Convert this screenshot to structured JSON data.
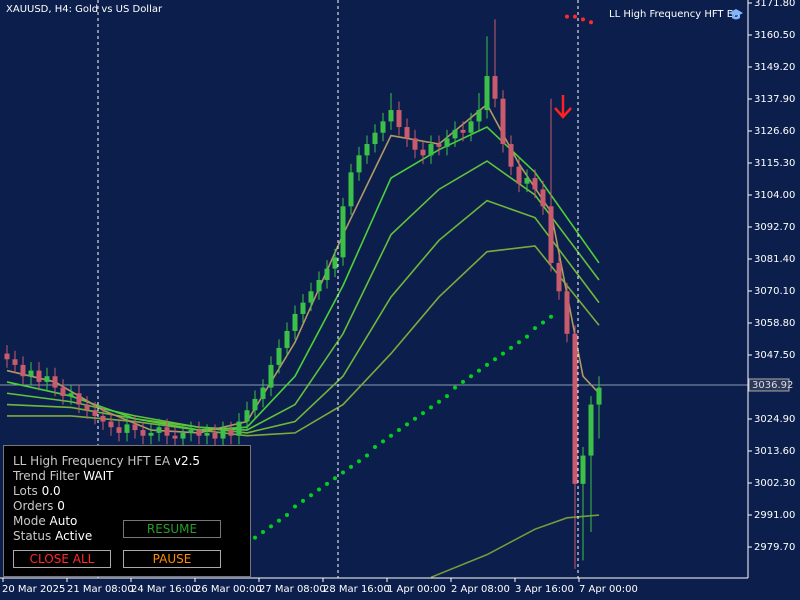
{
  "chart_data": {
    "type": "candlestick",
    "title": "XAUUSD, H4:  Gold vs US Dollar",
    "up_color": "#3cc04a",
    "down_color": "#c95b6e",
    "categories": [
      "20 Mar 2025",
      null,
      null,
      null,
      null,
      null,
      null,
      null,
      "21 Mar 08:00",
      null,
      null,
      null,
      null,
      null,
      null,
      null,
      "24 Mar 16:00",
      null,
      null,
      null,
      null,
      null,
      null,
      null,
      "26 Mar 00:00",
      null,
      null,
      null,
      null,
      null,
      null,
      null,
      "27 Mar 08:00",
      null,
      null,
      null,
      null,
      null,
      null,
      null,
      "28 Mar 16:00",
      null,
      null,
      null,
      null,
      null,
      null,
      null,
      "1 Apr 00:00",
      null,
      null,
      null,
      null,
      null,
      null,
      null,
      "2 Apr 08:00",
      null,
      null,
      null,
      null,
      null,
      null,
      null,
      "3 Apr 16:00",
      null,
      null,
      null,
      null,
      null,
      null,
      null,
      "7 Apr 00:00",
      null,
      null
    ],
    "candles": [
      [
        3048,
        3051,
        3043,
        3046
      ],
      [
        3046,
        3049,
        3041,
        3044
      ],
      [
        3044,
        3047,
        3037,
        3040
      ],
      [
        3040,
        3045,
        3037,
        3042
      ],
      [
        3042,
        3045,
        3035,
        3038
      ],
      [
        3038,
        3043,
        3035,
        3040
      ],
      [
        3040,
        3043,
        3033,
        3036
      ],
      [
        3036,
        3039,
        3030,
        3033
      ],
      [
        3033,
        3037,
        3030,
        3034
      ],
      [
        3034,
        3037,
        3027,
        3030
      ],
      [
        3030,
        3033,
        3025,
        3028
      ],
      [
        3028,
        3031,
        3023,
        3026
      ],
      [
        3026,
        3029,
        3021,
        3024
      ],
      [
        3024,
        3027,
        3019,
        3022
      ],
      [
        3022,
        3025,
        3017,
        3020
      ],
      [
        3020,
        3026,
        3017,
        3023
      ],
      [
        3023,
        3026,
        3018,
        3021
      ],
      [
        3021,
        3024,
        3016,
        3019
      ],
      [
        3019,
        3023,
        3016,
        3020
      ],
      [
        3020,
        3025,
        3017,
        3022
      ],
      [
        3022,
        3025,
        3016,
        3019
      ],
      [
        3019,
        3022,
        3015,
        3018
      ],
      [
        3018,
        3023,
        3015,
        3020
      ],
      [
        3020,
        3024,
        3017,
        3021
      ],
      [
        3021,
        3024,
        3016,
        3019
      ],
      [
        3019,
        3023,
        3016,
        3020
      ],
      [
        3020,
        3023,
        3015,
        3018
      ],
      [
        3018,
        3024,
        3015,
        3021
      ],
      [
        3021,
        3024,
        3016,
        3019
      ],
      [
        3019,
        3027,
        3016,
        3024
      ],
      [
        3024,
        3031,
        3021,
        3028
      ],
      [
        3028,
        3035,
        3025,
        3032
      ],
      [
        3032,
        3039,
        3029,
        3036
      ],
      [
        3036,
        3047,
        3033,
        3044
      ],
      [
        3044,
        3053,
        3041,
        3050
      ],
      [
        3050,
        3059,
        3047,
        3056
      ],
      [
        3056,
        3065,
        3053,
        3062
      ],
      [
        3062,
        3069,
        3059,
        3066
      ],
      [
        3066,
        3073,
        3063,
        3070
      ],
      [
        3070,
        3077,
        3067,
        3074
      ],
      [
        3074,
        3081,
        3071,
        3078
      ],
      [
        3078,
        3085,
        3075,
        3082
      ],
      [
        3082,
        3103,
        3079,
        3100
      ],
      [
        3100,
        3115,
        3097,
        3112
      ],
      [
        3112,
        3121,
        3109,
        3118
      ],
      [
        3118,
        3125,
        3115,
        3122
      ],
      [
        3122,
        3129,
        3119,
        3126
      ],
      [
        3126,
        3133,
        3123,
        3130
      ],
      [
        3130,
        3140,
        3127,
        3134
      ],
      [
        3134,
        3137,
        3125,
        3128
      ],
      [
        3128,
        3131,
        3121,
        3124
      ],
      [
        3124,
        3127,
        3117,
        3120
      ],
      [
        3120,
        3123,
        3115,
        3118
      ],
      [
        3118,
        3125,
        3115,
        3122
      ],
      [
        3122,
        3125,
        3118,
        3121
      ],
      [
        3121,
        3127,
        3118,
        3124
      ],
      [
        3124,
        3130,
        3121,
        3127
      ],
      [
        3127,
        3130,
        3123,
        3126
      ],
      [
        3126,
        3133,
        3123,
        3130
      ],
      [
        3130,
        3140,
        3127,
        3134
      ],
      [
        3134,
        3160,
        3131,
        3146
      ],
      [
        3146,
        3166,
        3135,
        3138
      ],
      [
        3138,
        3141,
        3119,
        3122
      ],
      [
        3122,
        3125,
        3111,
        3114
      ],
      [
        3114,
        3117,
        3105,
        3108
      ],
      [
        3108,
        3113,
        3105,
        3110
      ],
      [
        3110,
        3113,
        3103,
        3106
      ],
      [
        3106,
        3109,
        3097,
        3100
      ],
      [
        3100,
        3138,
        3077,
        3080
      ],
      [
        3080,
        3083,
        3067,
        3070
      ],
      [
        3070,
        3073,
        3052,
        3055
      ],
      [
        3055,
        3058,
        2972,
        3002
      ],
      [
        3002,
        3015,
        2975,
        3012
      ],
      [
        3012,
        3033,
        2985,
        3030
      ],
      [
        3030,
        3040,
        3018,
        3036
      ]
    ],
    "series": [
      {
        "style": "line",
        "color": "#7cab3c",
        "x": [
          0,
          8,
          16,
          24,
          30,
          36,
          42,
          48,
          54,
          60,
          66,
          74
        ],
        "values": [
          3026,
          3026,
          3024,
          3021,
          3019,
          3020,
          3030,
          3048,
          3068,
          3084,
          3086,
          3058
        ]
      },
      {
        "style": "line",
        "color": "#6fb83a",
        "x": [
          0,
          8,
          16,
          24,
          30,
          36,
          42,
          48,
          54,
          60,
          66,
          74
        ],
        "values": [
          3030,
          3029,
          3025,
          3022,
          3020,
          3024,
          3040,
          3068,
          3088,
          3102,
          3096,
          3066
        ]
      },
      {
        "style": "line",
        "color": "#63c23b",
        "x": [
          0,
          8,
          16,
          24,
          30,
          36,
          42,
          48,
          54,
          60,
          66,
          74
        ],
        "values": [
          3034,
          3031,
          3026,
          3022,
          3021,
          3030,
          3055,
          3090,
          3106,
          3116,
          3104,
          3074
        ]
      },
      {
        "style": "line",
        "color": "#4cd137",
        "x": [
          0,
          8,
          16,
          24,
          30,
          36,
          42,
          48,
          54,
          60,
          66,
          74
        ],
        "values": [
          3038,
          3033,
          3025,
          3021,
          3022,
          3040,
          3072,
          3110,
          3120,
          3128,
          3112,
          3080
        ]
      },
      {
        "style": "line",
        "color": "#b09a62",
        "x": [
          0,
          6,
          12,
          18,
          24,
          30,
          36,
          42,
          48,
          54,
          60,
          64,
          68,
          72,
          74
        ],
        "values": [
          3042,
          3038,
          3028,
          3021,
          3020,
          3024,
          3052,
          3090,
          3125,
          3122,
          3136,
          3115,
          3098,
          3040,
          3034
        ]
      },
      {
        "style": "line",
        "color": "#7a9a3a",
        "x": [
          53,
          60,
          66,
          70,
          74
        ],
        "values": [
          2969,
          2977,
          2986,
          2990,
          2991
        ]
      },
      {
        "style": "dots",
        "color": "#00d21e",
        "x": [
          31,
          32,
          33,
          34,
          35,
          36,
          37,
          38,
          39,
          40,
          41,
          42,
          43,
          44,
          45,
          46,
          47,
          48,
          49,
          50,
          51,
          52,
          53,
          54,
          55,
          56,
          57,
          58,
          59,
          60,
          61,
          62,
          63,
          64,
          65,
          66,
          67,
          68
        ],
        "values": [
          2983,
          2985,
          2987,
          2989,
          2991,
          2994,
          2996,
          2998,
          3000,
          3002,
          3004,
          3006,
          3008,
          3010,
          3012,
          3015,
          3017,
          3019,
          3021,
          3023,
          3025,
          3027,
          3029,
          3031,
          3033,
          3036,
          3038,
          3040,
          3042,
          3044,
          3046,
          3048,
          3050,
          3052,
          3054,
          3057,
          3059,
          3061
        ]
      },
      {
        "style": "dots",
        "color": "#ff2a2a",
        "x": [
          70,
          71,
          72,
          73
        ],
        "values": [
          3167,
          3167,
          3166,
          3165
        ]
      }
    ],
    "ylim": [
      2968.76,
      3172.86
    ],
    "yticks": [
      {
        "value": 3171.8,
        "label": "3171.80"
      },
      {
        "value": 3160.5,
        "label": "3160.50"
      },
      {
        "value": 3149.2,
        "label": "3149.20"
      },
      {
        "value": 3137.9,
        "label": "3137.90"
      },
      {
        "value": 3126.6,
        "label": "3126.60"
      },
      {
        "value": 3115.3,
        "label": "3115.30"
      },
      {
        "value": 3104,
        "label": "3104.00"
      },
      {
        "value": 3092.7,
        "label": "3092.70"
      },
      {
        "value": 3081.4,
        "label": "3081.40"
      },
      {
        "value": 3070.1,
        "label": "3070.10"
      },
      {
        "value": 3058.8,
        "label": "3058.80"
      },
      {
        "value": 3047.5,
        "label": "3047.50"
      },
      {
        "value": 3024.9,
        "label": "3024.90"
      },
      {
        "value": 3013.6,
        "label": "3013.60"
      },
      {
        "value": 3002.3,
        "label": "3002.30"
      },
      {
        "value": 2991,
        "label": "2991.00"
      },
      {
        "value": 2979.7,
        "label": "2979.70"
      }
    ],
    "current_price": {
      "value": 3036.92,
      "label": "3036.92"
    }
  },
  "ea_label": "LL High Frequency HFT EA",
  "panel": {
    "title": "LL High Frequency HFT EA",
    "version": "v2.5",
    "rows": [
      {
        "label": "Trend Filter",
        "value": "WAIT"
      },
      {
        "label": "Lots",
        "value": "0.0"
      },
      {
        "label": "Orders",
        "value": "0"
      },
      {
        "label": "Mode",
        "value": "Auto"
      },
      {
        "label": "Status",
        "value": "Active"
      }
    ],
    "buttons": [
      "RESUME",
      "CLOSE ALL",
      "PAUSE"
    ]
  }
}
